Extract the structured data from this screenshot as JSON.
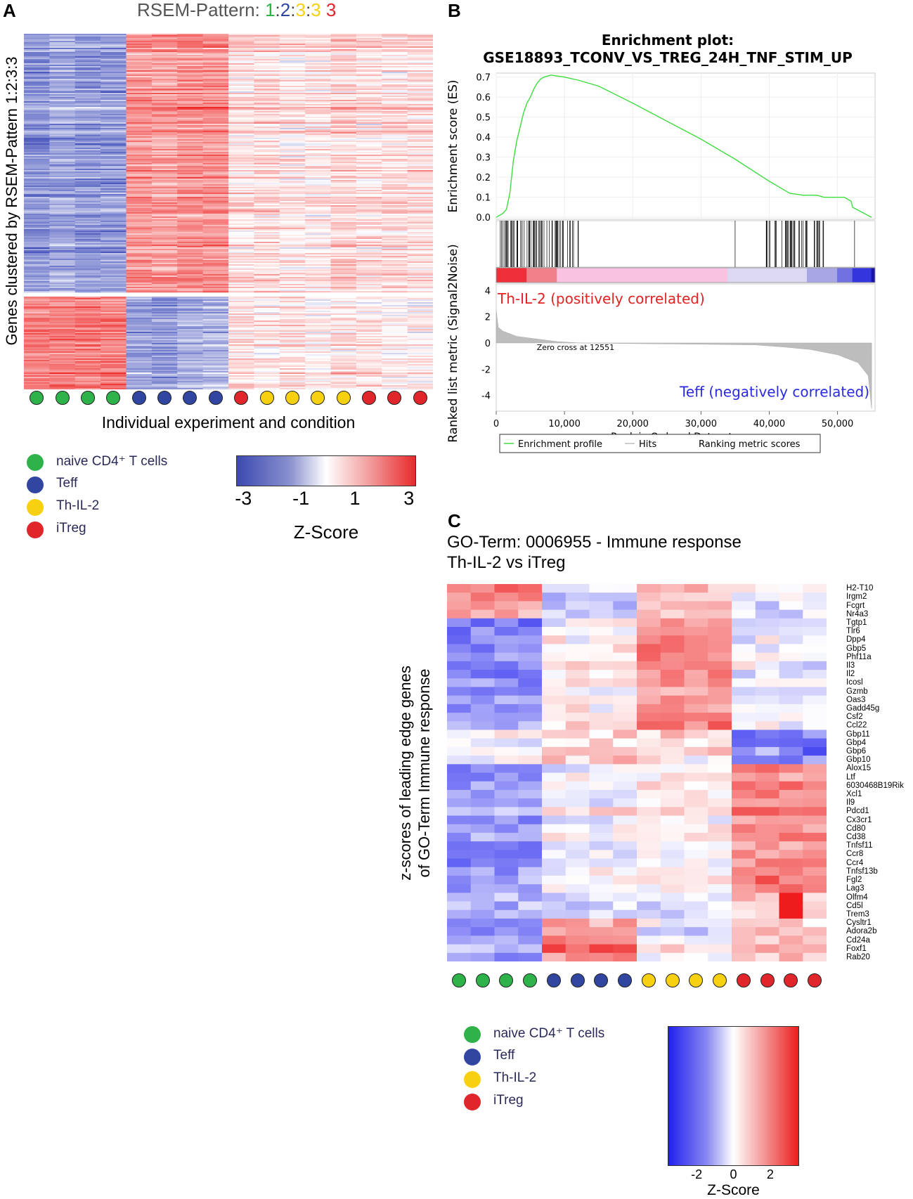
{
  "colors": {
    "naive": "#2eb24a",
    "teff": "#3046a0",
    "thil2": "#f7d10f",
    "itreg": "#e0252b",
    "heat_low": "#3a48b8",
    "heat_high": "#ee2a2a",
    "es_line": "#3fdc3f"
  },
  "panelA": {
    "letter": "A",
    "title_prefix": "RSEM-Pattern: ",
    "pattern_parts": [
      "1",
      ":",
      "2",
      ":",
      "3",
      ":",
      "3",
      " ",
      "3"
    ],
    "y_label": "Genes clustered by RSEM-Pattern 1:2:3:3",
    "x_label": "Individual experiment and condition",
    "sample_groups": [
      "naive",
      "naive",
      "naive",
      "naive",
      "teff",
      "teff",
      "teff",
      "teff",
      "itreg",
      "thil2",
      "thil2",
      "thil2",
      "thil2",
      "itreg",
      "itreg",
      "itreg"
    ],
    "legend": [
      {
        "key": "naive",
        "label": "naive CD4⁺ T cells"
      },
      {
        "key": "teff",
        "label": "Teff"
      },
      {
        "key": "thil2",
        "label": "Th-IL-2"
      },
      {
        "key": "itreg",
        "label": "iTreg"
      }
    ],
    "colorbar": {
      "ticks": [
        "-3",
        "-1",
        "1",
        "3"
      ],
      "label": "Z-Score"
    }
  },
  "panelB": {
    "letter": "B",
    "title_line1": "Enrichment plot:",
    "title_line2": "GSE18893_TCONV_VS_TREG_24H_TNF_STIM_UP",
    "zero_cross": "Zero cross at 12551",
    "pos_label": "Th-IL-2 (positively correlated)",
    "neg_label": "Teff (negatively correlated)",
    "legend": [
      "Enrichment profile",
      "Hits",
      "Ranking metric scores"
    ]
  },
  "panelC": {
    "letter": "C",
    "title_line1": "GO-Term: 0006955 - Immune response",
    "title_line2": "Th-IL-2 vs iTreg",
    "y_label_line1": "z-scores of leading edge genes",
    "y_label_line2": "of GO-Term Immune response",
    "genes": [
      "H2-T10",
      "Irgm2",
      "Fcgrt",
      "Nr4a3",
      "Tgtp1",
      "Tlr6",
      "Dpp4",
      "Gbp5",
      "Phf11a",
      "Il3",
      "Il2",
      "Icosl",
      "Gzmb",
      "Oas3",
      "Gadd45g",
      "Csf2",
      "Ccl22",
      "Gbp11",
      "Gbp4",
      "Gbp6",
      "Gbp10",
      "Alox15",
      "Ltf",
      "6030468B19Rik",
      "Xcl1",
      "Il9",
      "Pdcd1",
      "Cx3cr1",
      "Cd80",
      "Cd38",
      "Tnfsf11",
      "Ccr8",
      "Ccr4",
      "Tnfsf13b",
      "Fgl2",
      "Lag3",
      "Olfm4",
      "Cd5l",
      "Trem3",
      "Cysltr1",
      "Adora2b",
      "Cd24a",
      "Foxf1",
      "Rab20"
    ],
    "sample_groups": [
      "naive",
      "naive",
      "naive",
      "naive",
      "teff",
      "teff",
      "teff",
      "teff",
      "thil2",
      "thil2",
      "thil2",
      "thil2",
      "itreg",
      "itreg",
      "itreg",
      "itreg"
    ],
    "legend": [
      {
        "key": "naive",
        "label": "naive CD4⁺ T cells"
      },
      {
        "key": "teff",
        "label": "Teff"
      },
      {
        "key": "thil2",
        "label": "Th-IL-2"
      },
      {
        "key": "itreg",
        "label": "iTreg"
      }
    ],
    "colorbar": {
      "ticks": [
        "-2",
        "0",
        "2"
      ],
      "label": "Z-Score"
    }
  },
  "chart_data": [
    {
      "type": "heatmap",
      "title": "RSEM-Pattern: 1:2:3:3 3",
      "xlabel": "Individual experiment and condition",
      "ylabel": "Genes clustered by RSEM-Pattern 1:2:3:3",
      "columns": 16,
      "column_groups": [
        "naive",
        "naive",
        "naive",
        "naive",
        "teff",
        "teff",
        "teff",
        "teff",
        "itreg",
        "thil2",
        "thil2",
        "thil2",
        "thil2",
        "itreg",
        "itreg",
        "itreg"
      ],
      "clusters": [
        {
          "name": "upper",
          "row_fraction": 0.735,
          "group_mean_z": {
            "naive": -1.5,
            "teff": 1.3,
            "thil2": 0.4,
            "itreg": 0.4
          }
        },
        {
          "name": "lower",
          "row_fraction": 0.265,
          "group_mean_z": {
            "naive": 1.5,
            "teff": -1.2,
            "thil2": 0.3,
            "itreg": 0.2
          }
        }
      ],
      "zlim": [
        -3,
        3
      ]
    },
    {
      "type": "line",
      "title": "Enrichment plot: GSE18893_TCONV_VS_TREG_24H_TNF_STIM_UP",
      "xlabel": "Rank in Ordered Dataset",
      "ylabel": "Enrichment score (ES)",
      "xlim": [
        0,
        55500
      ],
      "ylim": [
        -0.01,
        0.72
      ],
      "x_ticks": [
        0,
        10000,
        20000,
        30000,
        40000,
        50000
      ],
      "x_tick_labels": [
        "0",
        "10,000",
        "20,000",
        "30,000",
        "40,000",
        "50,000"
      ],
      "y_ticks": [
        0.0,
        0.1,
        0.2,
        0.3,
        0.4,
        0.5,
        0.6,
        0.7
      ],
      "y_tick_labels": [
        "0.0",
        "0.1",
        "0.2",
        "0.3",
        "0.4",
        "0.5",
        "0.6",
        "0.7"
      ],
      "series": [
        {
          "name": "Enrichment profile",
          "x": [
            0,
            500,
            1000,
            1500,
            2000,
            2500,
            3000,
            3500,
            4000,
            4500,
            5000,
            5500,
            6000,
            6500,
            7000,
            7500,
            8000,
            9000,
            10000,
            12000,
            15000,
            20000,
            25000,
            30000,
            35000,
            40000,
            42000,
            43000,
            45000,
            47000,
            48000,
            50000,
            51000,
            52000,
            52200,
            55000
          ],
          "y": [
            0.0,
            0.01,
            0.02,
            0.04,
            0.12,
            0.28,
            0.38,
            0.45,
            0.52,
            0.57,
            0.6,
            0.64,
            0.67,
            0.69,
            0.7,
            0.705,
            0.71,
            0.705,
            0.7,
            0.685,
            0.655,
            0.57,
            0.48,
            0.39,
            0.29,
            0.18,
            0.14,
            0.12,
            0.11,
            0.11,
            0.1,
            0.1,
            0.1,
            0.08,
            0.05,
            0.0
          ]
        }
      ],
      "hits_regions": [
        [
          500,
          12500
        ],
        [
          39000,
          48500
        ]
      ],
      "extra_hits": [
        35000,
        52500
      ]
    },
    {
      "type": "area",
      "title": "Ranked list metric",
      "ylabel": "Ranked list metric (Signal2Noise)",
      "ylim": [
        -5.2,
        4.5
      ],
      "y_ticks": [
        4,
        2,
        0,
        -2,
        -4
      ],
      "y_tick_labels": [
        "4",
        "2",
        "0",
        "-2",
        "-4"
      ],
      "zero_cross_rank": 12551,
      "series": [
        {
          "name": "Ranking metric scores",
          "x": [
            0,
            300,
            1000,
            3000,
            6000,
            9000,
            12551,
            20000,
            30000,
            38000,
            42000,
            46000,
            50000,
            53000,
            54500,
            55000
          ],
          "y": [
            2.5,
            1.2,
            0.9,
            0.5,
            0.3,
            0.1,
            0.0,
            -0.05,
            -0.1,
            -0.15,
            -0.3,
            -0.5,
            -0.9,
            -1.5,
            -2.5,
            -5.0
          ]
        }
      ]
    },
    {
      "type": "heatmap",
      "title": "GO-Term: 0006955 - Immune response (Th-IL-2 vs iTreg)",
      "ylabel": "z-scores of leading edge genes of GO-Term Immune response",
      "rows": 44,
      "columns": 16,
      "row_blocks": [
        {
          "genes": "H2-T10 - Nr4a3",
          "group_mean_z": {
            "naive": 1.2,
            "teff": -0.6,
            "thil2": 0.7,
            "itreg": -0.2
          }
        },
        {
          "genes": "Tgtp1 - Ccl22",
          "group_mean_z": {
            "naive": -1.3,
            "teff": 0.2,
            "thil2": 1.3,
            "itreg": -0.3
          }
        },
        {
          "genes": "Gbp11 - Gbp10",
          "group_mean_z": {
            "naive": 0.2,
            "teff": 0.8,
            "thil2": 0.6,
            "itreg": -1.3
          }
        },
        {
          "genes": "Alox15 - Lag3",
          "group_mean_z": {
            "naive": -1.2,
            "teff": -0.1,
            "thil2": 0.2,
            "itreg": 1.4
          }
        },
        {
          "genes": "Olfm4 - Trem3",
          "group_mean_z": {
            "naive": -0.6,
            "teff": -0.4,
            "thil2": -0.3,
            "itreg": 0.7
          }
        },
        {
          "genes": "Cysltr1 - Rab20",
          "group_mean_z": {
            "naive": -1.3,
            "teff": 1.2,
            "thil2": -0.3,
            "itreg": 0.5
          }
        }
      ],
      "zlim": [
        -3,
        3
      ]
    }
  ]
}
